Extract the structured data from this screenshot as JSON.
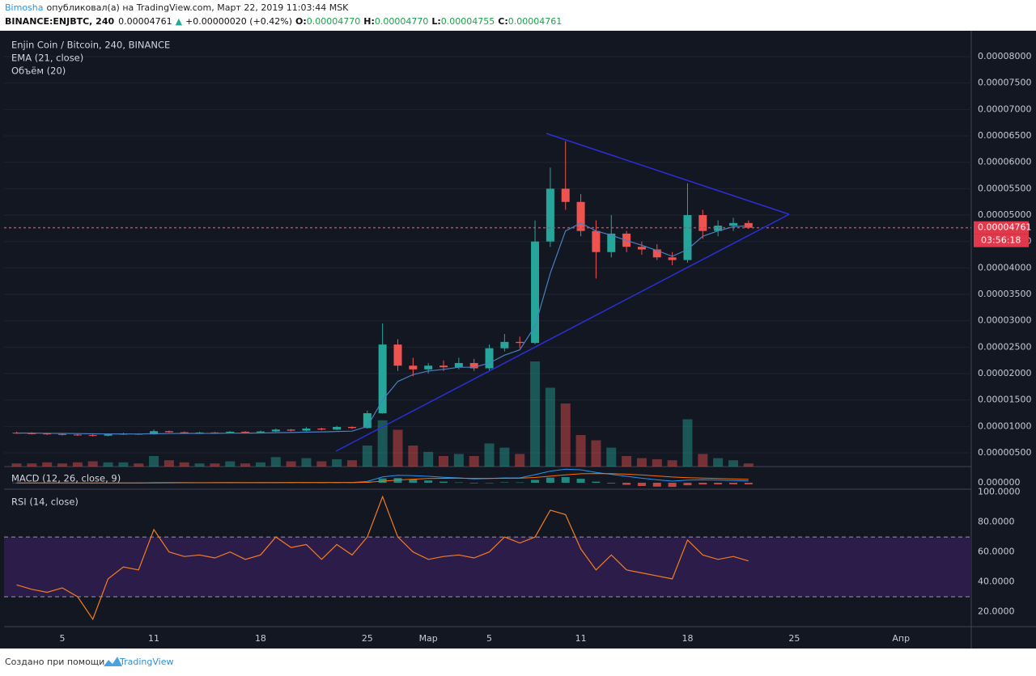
{
  "header": {
    "user": "Bimosha",
    "published": "опубликовал(а) на TradingView.com, Март 22, 2019 11:03:44 MSK",
    "symbol": "BINANCE:ENJBTC, 240",
    "price": "0.00004761",
    "arrow": "▲",
    "change": "+0.00000020 (+0.42%)",
    "o_label": "O:",
    "o": "0.00004770",
    "h_label": "H:",
    "h": "0.00004770",
    "l_label": "L:",
    "l": "0.00004755",
    "c_label": "C:",
    "c": "0.00004761"
  },
  "footer": {
    "text": "Создано при помощи",
    "brand": "TradingView"
  },
  "chart_data": [
    {
      "type": "candlestick",
      "title": "Enjin Coin / Bitcoin, 240, BINANCE",
      "categories": [
        null,
        null,
        null,
        "5",
        null,
        null,
        null,
        null,
        null,
        "11",
        null,
        null,
        null,
        null,
        null,
        null,
        "18",
        null,
        null,
        null,
        null,
        null,
        null,
        "25",
        null,
        null,
        null,
        "Мар",
        null,
        null,
        null,
        "5",
        null,
        null,
        null,
        null,
        null,
        "11",
        null,
        null,
        null,
        null,
        null,
        null,
        "18",
        null,
        null,
        null,
        null,
        null,
        null,
        "25",
        null,
        null,
        null,
        null,
        null,
        null,
        "Апр",
        null
      ],
      "open": [
        8.8e-06,
        8.7e-06,
        8.65e-06,
        8.55e-06,
        8.45e-06,
        8.35e-06,
        8.25e-06,
        8.5e-06,
        8.6e-06,
        8.5e-06,
        9.1e-06,
        8.9e-06,
        8.8e-06,
        8.85e-06,
        8.75e-06,
        9e-06,
        8.85e-06,
        9.05e-06,
        9.4e-06,
        9.2e-06,
        9.6e-06,
        9.4e-06,
        9.9e-06,
        9.7e-06,
        1.25e-05,
        2.55e-05,
        2.15e-05,
        2.08e-05,
        2.15e-05,
        2.12e-05,
        2.2e-05,
        2.1e-05,
        2.48e-05,
        2.6e-05,
        2.58e-05,
        4.5e-05,
        5.5e-05,
        5.25e-05,
        4.7e-05,
        4.3e-05,
        4.65e-05,
        4.4e-05,
        4.35e-05,
        4.2e-05,
        4.15e-05,
        5e-05,
        4.7e-05,
        4.8e-05,
        4.85e-05,
        null,
        null,
        null,
        null,
        null,
        null,
        null,
        null,
        null,
        null,
        null
      ],
      "high": [
        9e-06,
        8.9e-06,
        8.8e-06,
        8.7e-06,
        8.6e-06,
        8.5e-06,
        8.6e-06,
        8.8e-06,
        8.7e-06,
        9.4e-06,
        9.2e-06,
        9.05e-06,
        9e-06,
        8.95e-06,
        9.1e-06,
        9.1e-06,
        9.2e-06,
        9.6e-06,
        9.5e-06,
        9.85e-06,
        9.75e-06,
        1.01e-05,
        1e-05,
        1.3e-05,
        2.95e-05,
        2.65e-05,
        2.3e-05,
        2.2e-05,
        2.25e-05,
        2.3e-05,
        2.28e-05,
        2.55e-05,
        2.75e-05,
        2.7e-05,
        4.9e-05,
        5.9e-05,
        6.4e-05,
        5.4e-05,
        4.9e-05,
        5e-05,
        4.7e-05,
        4.5e-05,
        4.45e-05,
        4.3e-05,
        5.6e-05,
        5.1e-05,
        4.9e-05,
        4.95e-05,
        4.9e-05,
        null,
        null,
        null,
        null,
        null,
        null,
        null,
        null,
        null,
        null,
        null
      ],
      "low": [
        8.6e-06,
        8.5e-06,
        8.4e-06,
        8.3e-06,
        8.2e-06,
        8.1e-06,
        8.15e-06,
        8.4e-06,
        8.4e-06,
        8.45e-06,
        8.8e-06,
        8.7e-06,
        8.65e-06,
        8.65e-06,
        8.7e-06,
        8.75e-06,
        8.75e-06,
        8.95e-06,
        9.05e-06,
        9.1e-06,
        9.25e-06,
        9.3e-06,
        9.5e-06,
        9.6e-06,
        1.24e-05,
        2.05e-05,
        1.95e-05,
        2e-05,
        2.05e-05,
        2.08e-05,
        2.05e-05,
        2.05e-05,
        2.42e-05,
        2.48e-05,
        2.56e-05,
        4.4e-05,
        5.1e-05,
        4.6e-05,
        3.8e-05,
        4.2e-05,
        4.3e-05,
        4.25e-05,
        4.15e-05,
        4.05e-05,
        4.1e-05,
        4.55e-05,
        4.6e-05,
        4.7e-05,
        4.74e-05,
        null,
        null,
        null,
        null,
        null,
        null,
        null,
        null,
        null,
        null,
        null
      ],
      "close": [
        8.7e-06,
        8.65e-06,
        8.55e-06,
        8.45e-06,
        8.35e-06,
        8.25e-06,
        8.5e-06,
        8.6e-06,
        8.5e-06,
        9.1e-06,
        8.9e-06,
        8.8e-06,
        8.85e-06,
        8.75e-06,
        9e-06,
        8.85e-06,
        9.05e-06,
        9.4e-06,
        9.2e-06,
        9.6e-06,
        9.4e-06,
        9.9e-06,
        9.7e-06,
        1.25e-05,
        2.55e-05,
        2.15e-05,
        2.08e-05,
        2.15e-05,
        2.12e-05,
        2.2e-05,
        2.1e-05,
        2.48e-05,
        2.6e-05,
        2.58e-05,
        4.5e-05,
        5.5e-05,
        5.25e-05,
        4.7e-05,
        4.3e-05,
        4.65e-05,
        4.4e-05,
        4.35e-05,
        4.2e-05,
        4.15e-05,
        5e-05,
        4.7e-05,
        4.8e-05,
        4.85e-05,
        4.761e-05,
        null,
        null,
        null,
        null,
        null,
        null,
        null,
        null,
        null,
        null,
        null
      ],
      "up_color": "#26a69a",
      "down_color": "#ef5350",
      "ema": {
        "name": "EMA (21, close)",
        "color": "#4a7fc1",
        "values": [
          8.75e-06,
          8.73e-06,
          8.7e-06,
          8.68e-06,
          8.65e-06,
          8.6e-06,
          8.58e-06,
          8.58e-06,
          8.57e-06,
          8.62e-06,
          8.65e-06,
          8.67e-06,
          8.68e-06,
          8.69e-06,
          8.72e-06,
          8.73e-06,
          8.76e-06,
          8.82e-06,
          8.85e-06,
          8.92e-06,
          8.96e-06,
          9.04e-06,
          9.1e-06,
          1e-05,
          1.5e-05,
          1.85e-05,
          1.98e-05,
          2.05e-05,
          2.08e-05,
          2.12e-05,
          2.12e-05,
          2.2e-05,
          2.35e-05,
          2.45e-05,
          2.9e-05,
          3.9e-05,
          4.7e-05,
          4.85e-05,
          4.7e-05,
          4.62e-05,
          4.52e-05,
          4.43e-05,
          4.33e-05,
          4.22e-05,
          4.35e-05,
          4.6e-05,
          4.7e-05,
          4.78e-05,
          4.8e-05,
          null,
          null,
          null,
          null,
          null,
          null,
          null,
          null,
          null,
          null,
          null
        ]
      },
      "volume": {
        "name": "Объём (20)",
        "values": [
          3,
          3,
          4,
          3,
          4,
          5,
          4,
          4,
          3,
          10,
          6,
          4,
          3,
          3,
          5,
          3,
          4,
          9,
          5,
          8,
          5,
          7,
          6,
          20,
          44,
          35,
          20,
          14,
          10,
          12,
          10,
          22,
          18,
          12,
          100,
          75,
          60,
          30,
          25,
          18,
          10,
          8,
          7,
          6,
          45,
          12,
          8,
          6,
          3,
          null,
          null,
          null,
          null,
          null,
          null,
          null,
          null,
          null,
          null,
          null
        ]
      },
      "ylim": [
        2.4e-06,
        8.46e-05
      ],
      "yticks": [
        {
          "value": 5e-06,
          "label": "0.00000500"
        },
        {
          "value": 1e-05,
          "label": "0.00001000"
        },
        {
          "value": 1.5e-05,
          "label": "0.00001500"
        },
        {
          "value": 2e-05,
          "label": "0.00002000"
        },
        {
          "value": 2.5e-05,
          "label": "0.00002500"
        },
        {
          "value": 3e-05,
          "label": "0.00003000"
        },
        {
          "value": 3.5e-05,
          "label": "0.00003500"
        },
        {
          "value": 4e-05,
          "label": "0.00004000"
        },
        {
          "value": 4.5e-05,
          "label": "0.00004500"
        },
        {
          "value": 5e-05,
          "label": "0.00005000"
        },
        {
          "value": 5.5e-05,
          "label": "0.00005500"
        },
        {
          "value": 6e-05,
          "label": "0.00006000"
        },
        {
          "value": 6.5e-05,
          "label": "0.00006500"
        },
        {
          "value": 7e-05,
          "label": "0.00007000"
        },
        {
          "value": 7.5e-05,
          "label": "0.00007500"
        },
        {
          "value": 8e-05,
          "label": "0.00008000"
        }
      ],
      "last_price": 4.761e-05,
      "last_price_color": "#e0394b",
      "countdown": "03:56:18",
      "grid": true
    },
    {
      "type": "macd",
      "title": "MACD (12, 26, close, 9)",
      "macd": {
        "color": "#2196f3",
        "values": [
          -5e-08,
          -5e-08,
          -6e-08,
          -7e-08,
          -8e-08,
          -9e-08,
          -7e-08,
          -5e-08,
          -4e-08,
          2e-08,
          4e-08,
          4e-08,
          3e-08,
          3e-08,
          4e-08,
          3e-08,
          4e-08,
          6e-08,
          6e-08,
          8e-08,
          7e-08,
          9e-08,
          1e-07,
          4e-07,
          1.8e-06,
          2.3e-06,
          2.2e-06,
          2e-06,
          1.7e-06,
          1.5e-06,
          1.2e-06,
          1.3e-06,
          1.5e-06,
          1.5e-06,
          2.5e-06,
          3.6e-06,
          4.2e-06,
          4e-06,
          3.2e-06,
          2.6e-06,
          2e-06,
          1.4e-06,
          9e-07,
          5e-07,
          8e-07,
          9e-07,
          8e-07,
          7e-07,
          5.5e-07,
          null,
          null,
          null,
          null,
          null,
          null,
          null,
          null,
          null,
          null,
          null
        ]
      },
      "signal": {
        "color": "#ff6d00",
        "values": [
          -4e-08,
          -4e-08,
          -5e-08,
          -5e-08,
          -6e-08,
          -7e-08,
          -7e-08,
          -6e-08,
          -6e-08,
          -4e-08,
          -2e-08,
          0,
          1e-08,
          2e-08,
          2e-08,
          2e-08,
          3e-08,
          3e-08,
          4e-08,
          5e-08,
          5e-08,
          6e-08,
          7e-08,
          1.4e-07,
          4.7e-07,
          8.4e-07,
          1.11e-06,
          1.29e-06,
          1.37e-06,
          1.4e-06,
          1.36e-06,
          1.35e-06,
          1.38e-06,
          1.4e-06,
          1.62e-06,
          2.02e-06,
          2.46e-06,
          2.77e-06,
          2.86e-06,
          2.81e-06,
          2.65e-06,
          2.4e-06,
          2.1e-06,
          1.78e-06,
          1.58e-06,
          1.44e-06,
          1.31e-06,
          1.19e-06,
          1.06e-06,
          null,
          null,
          null,
          null,
          null,
          null,
          null,
          null,
          null,
          null,
          null
        ]
      },
      "histogram": {
        "up_color": "#26a69a",
        "down_color": "#ef5350",
        "values": [
          -1e-08,
          -1e-08,
          -1e-08,
          -2e-08,
          -2e-08,
          -2e-08,
          0,
          1e-08,
          2e-08,
          6e-08,
          6e-08,
          4e-08,
          2e-08,
          1e-08,
          2e-08,
          1e-08,
          1e-08,
          3e-08,
          2e-08,
          3e-08,
          2e-08,
          3e-08,
          3e-08,
          2.6e-07,
          1.33e-06,
          1.46e-06,
          1.09e-06,
          7.1e-07,
          3.3e-07,
          1e-07,
          -1.6e-07,
          -5e-08,
          1.2e-07,
          1e-07,
          8.8e-07,
          1.58e-06,
          1.74e-06,
          1.23e-06,
          3.4e-07,
          -2.1e-07,
          -6.5e-07,
          -1e-06,
          -1.2e-06,
          -1.28e-06,
          -7.8e-07,
          -5.4e-07,
          -5.1e-07,
          -4.9e-07,
          -5.1e-07,
          null,
          null,
          null,
          null,
          null,
          null,
          null,
          null,
          null,
          null,
          null
        ]
      },
      "ylim": [
        -2e-06,
        5e-06
      ],
      "yticks": [
        {
          "value": 0,
          "label": "0.000000"
        }
      ]
    },
    {
      "type": "rsi",
      "title": "RSI (14, close)",
      "color": "#f57c1f",
      "values": [
        38,
        35,
        33,
        36,
        30,
        15,
        42,
        50,
        48,
        75,
        60,
        57,
        58,
        56,
        60,
        55,
        58,
        70,
        63,
        65,
        55,
        65,
        58,
        70,
        97,
        70,
        60,
        55,
        57,
        58,
        56,
        60,
        70,
        66,
        70,
        88,
        85,
        62,
        48,
        58,
        48,
        46,
        44,
        42,
        68,
        58,
        55,
        57,
        54,
        null,
        null,
        null,
        null,
        null,
        null,
        null,
        null,
        null,
        null,
        null
      ],
      "levels": [
        30,
        70
      ],
      "band_color": "#2b1c4a",
      "ylim": [
        10,
        102
      ],
      "yticks": [
        {
          "value": 20,
          "label": "20.0000"
        },
        {
          "value": 40,
          "label": "40.0000"
        },
        {
          "value": 60,
          "label": "60.0000"
        },
        {
          "value": 80,
          "label": "80.0000"
        },
        {
          "value": 100,
          "label": "100.0000"
        }
      ]
    }
  ]
}
